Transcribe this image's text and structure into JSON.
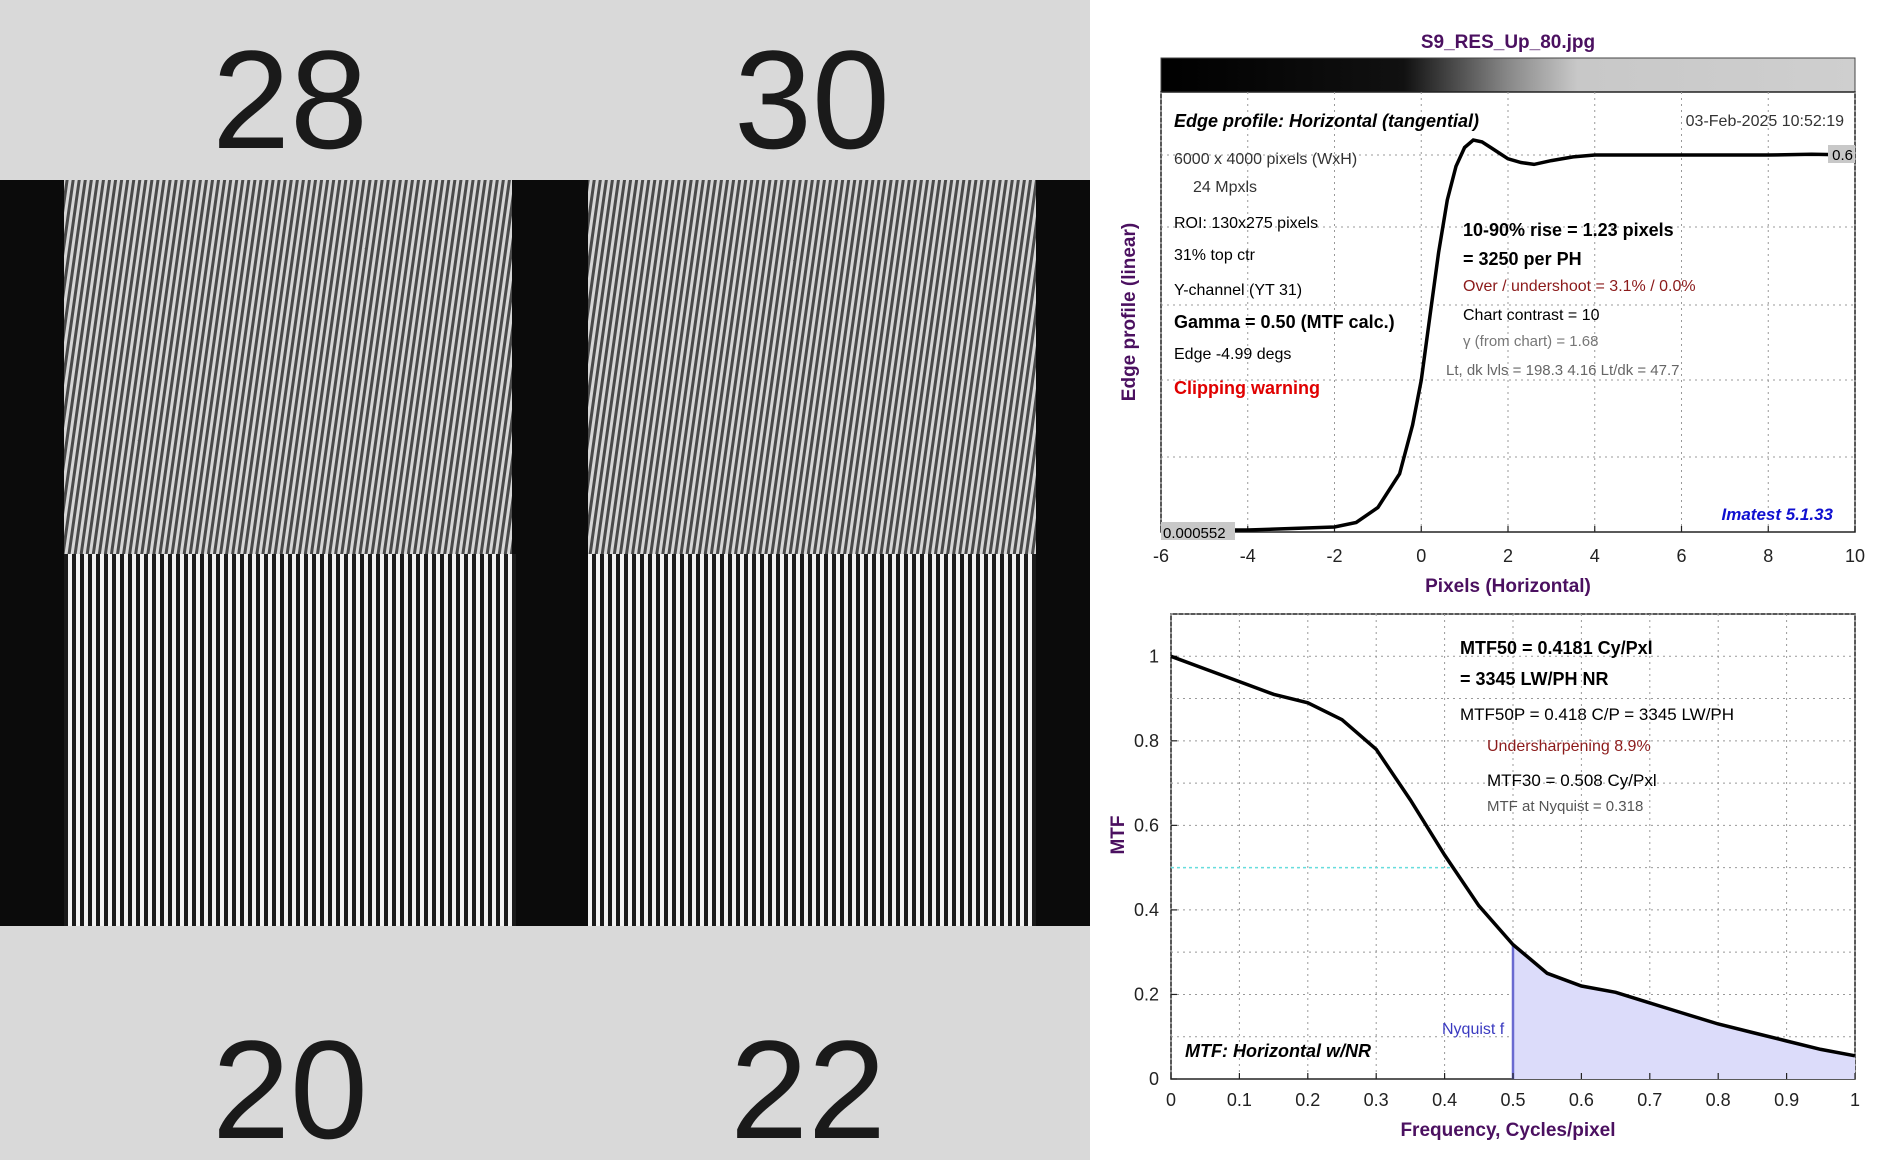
{
  "file_title": "S9_RES_Up_80.jpg",
  "photo": {
    "labels": [
      "28",
      "30",
      "20",
      "22"
    ]
  },
  "edge_panel": {
    "title": "Edge profile: Horizontal (tangential)",
    "timestamp": "03-Feb-2025 10:52:19",
    "info_left": [
      "6000 x 4000 pixels (WxH)",
      "24 Mpxls",
      "ROI:  130x275 pixels",
      "31% top ctr",
      "Y-channel  (YT 31)",
      "Gamma = 0.50 (MTF calc.)",
      "Edge  -4.99 degs"
    ],
    "clipping": "Clipping warning",
    "info_right": [
      "10-90% rise = 1.23 pixels",
      "=   3250 per PH",
      "Over / undershoot =  3.1% /  0.0%",
      "Chart contrast = 10",
      "γ (from chart) =  1.68",
      "Lt, dk lvls = 198.3  4.16  Lt/dk = 47.7"
    ],
    "version": "Imatest 5.1.33",
    "top_value": "0.6",
    "bottom_value": "0.000552"
  },
  "mtf_panel": {
    "label": "MTF: Horizontal w/NR",
    "nyquist_label": "Nyquist f",
    "info": [
      "MTF50 = 0.4181 Cy/Pxl",
      "= 3345 LW/PH  NR",
      "MTF50P = 0.418 C/P = 3345 LW/PH",
      "Undersharpening  8.9%",
      "MTF30 = 0.508 Cy/Pxl",
      "MTF at Nyquist = 0.318"
    ]
  },
  "colors": {
    "title_purple": "#4b1060",
    "red": "#e00000",
    "dark_red": "#8b1a1a",
    "blue": "#1010d0",
    "cyan": "#66dddd",
    "nyquist_fill": "#dcdcfa",
    "nyquist_line": "#6a6ad0"
  },
  "chart_data": [
    {
      "type": "line",
      "xlabel": "Pixels (Horizontal)",
      "ylabel": "Edge profile (linear)",
      "xlim": [
        -6,
        10
      ],
      "xticks": [
        -6,
        -4,
        -2,
        0,
        2,
        4,
        6,
        8,
        10
      ],
      "grid": true,
      "series": [
        {
          "x": [
            -6,
            -4,
            -2,
            -1.5,
            -1,
            -0.5,
            -0.2,
            0,
            0.2,
            0.4,
            0.6,
            0.8,
            1.0,
            1.2,
            1.4,
            1.6,
            1.8,
            2.0,
            2.3,
            2.6,
            3.0,
            3.5,
            4,
            5,
            6,
            7,
            8,
            9,
            10
          ],
          "y": [
            0.0,
            0.0,
            0.008,
            0.02,
            0.06,
            0.15,
            0.28,
            0.4,
            0.57,
            0.74,
            0.88,
            0.97,
            1.02,
            1.04,
            1.035,
            1.02,
            1.005,
            0.99,
            0.98,
            0.975,
            0.985,
            0.995,
            1.0,
            1.0,
            1.0,
            1.0,
            1.0,
            1.002,
            1.0
          ]
        }
      ]
    },
    {
      "type": "line",
      "xlabel": "Frequency, Cycles/pixel",
      "ylabel": "MTF",
      "xlim": [
        0,
        1
      ],
      "ylim": [
        0,
        1.1
      ],
      "xticks": [
        0,
        0.1,
        0.2,
        0.3,
        0.4,
        0.5,
        0.6,
        0.7,
        0.8,
        0.9,
        1
      ],
      "xtick_labels": [
        "0",
        "0.1",
        "0.2",
        "0.3",
        "0.4",
        "0.5",
        "0.6",
        "0.7",
        "0.8",
        "0.9",
        "1"
      ],
      "yticks": [
        0,
        0.2,
        0.4,
        0.6,
        0.8,
        1
      ],
      "ytick_labels": [
        "0",
        "0.2",
        "0.4",
        "0.6",
        "0.8",
        "1"
      ],
      "grid": true,
      "mtf50_level": 0.5,
      "nyquist_x": 0.5,
      "series": [
        {
          "x": [
            0,
            0.05,
            0.1,
            0.15,
            0.2,
            0.25,
            0.3,
            0.35,
            0.4,
            0.45,
            0.5,
            0.55,
            0.6,
            0.65,
            0.7,
            0.75,
            0.8,
            0.85,
            0.9,
            0.95,
            1.0
          ],
          "y": [
            1.0,
            0.97,
            0.94,
            0.91,
            0.89,
            0.85,
            0.78,
            0.66,
            0.53,
            0.41,
            0.318,
            0.25,
            0.22,
            0.205,
            0.18,
            0.155,
            0.13,
            0.11,
            0.09,
            0.07,
            0.055
          ]
        }
      ]
    }
  ]
}
